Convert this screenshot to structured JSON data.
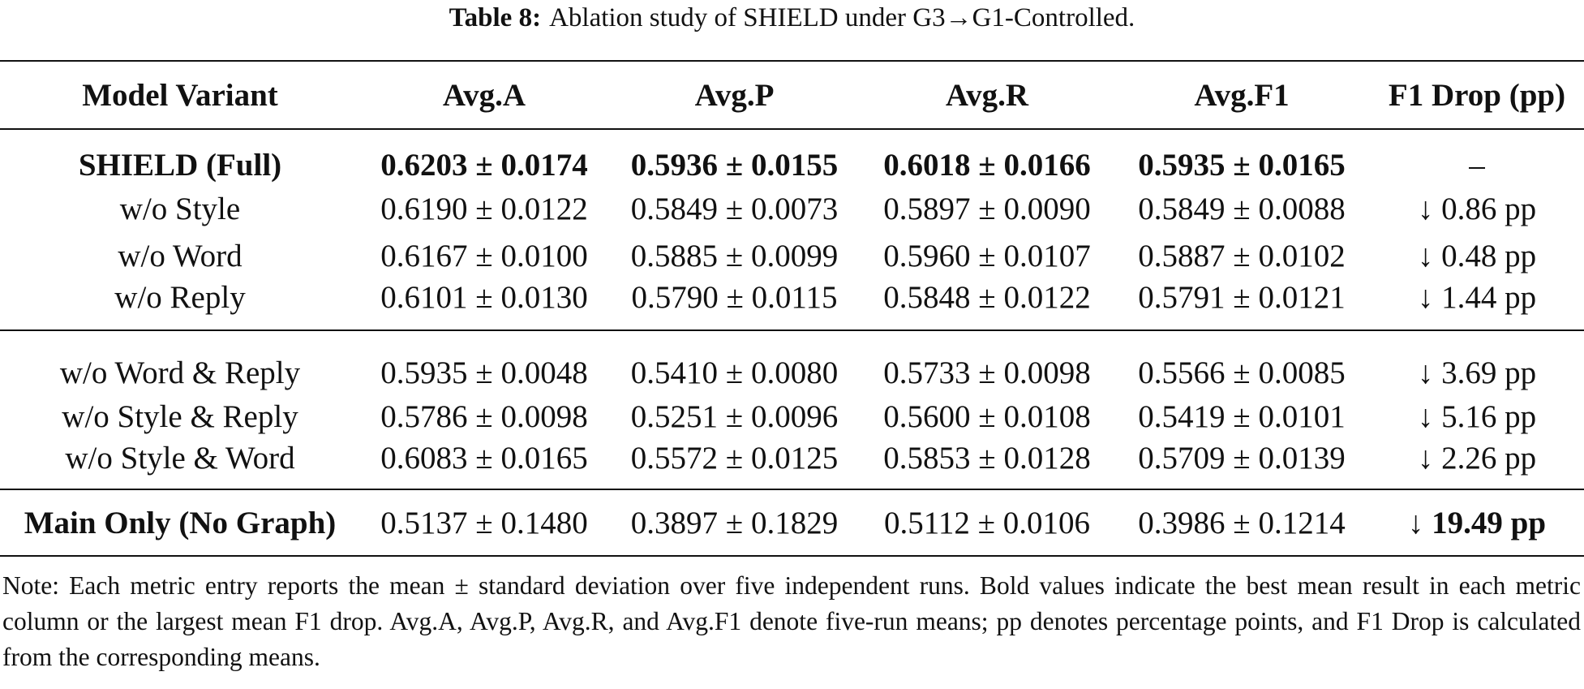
{
  "caption": {
    "label": "Table 8:",
    "text": "Ablation study of SHIELD under G3→G1-Controlled."
  },
  "table": {
    "headers": [
      "Model Variant",
      "Avg.A",
      "Avg.P",
      "Avg.R",
      "Avg.F1",
      "F1 Drop (pp)"
    ],
    "groups": [
      [
        {
          "variant": "SHIELD (Full)",
          "a": "0.6203 ± 0.0174",
          "p": "0.5936 ± 0.0155",
          "r": "0.6018 ± 0.0166",
          "f1": "0.5935 ± 0.0165",
          "drop": "–"
        },
        {
          "variant": "w/o Style",
          "a": "0.6190 ± 0.0122",
          "p": "0.5849 ± 0.0073",
          "r": "0.5897 ± 0.0090",
          "f1": "0.5849 ± 0.0088",
          "drop": "↓ 0.86 pp"
        },
        {
          "variant": "w/o Word",
          "a": "0.6167 ± 0.0100",
          "p": "0.5885 ± 0.0099",
          "r": "0.5960 ± 0.0107",
          "f1": "0.5887 ± 0.0102",
          "drop": "↓ 0.48 pp"
        },
        {
          "variant": "w/o Reply",
          "a": "0.6101 ± 0.0130",
          "p": "0.5790 ± 0.0115",
          "r": "0.5848 ± 0.0122",
          "f1": "0.5791 ± 0.0121",
          "drop": "↓ 1.44 pp"
        }
      ],
      [
        {
          "variant": "w/o Word & Reply",
          "a": "0.5935 ± 0.0048",
          "p": "0.5410 ± 0.0080",
          "r": "0.5733 ± 0.0098",
          "f1": "0.5566 ± 0.0085",
          "drop": "↓ 3.69 pp"
        },
        {
          "variant": "w/o Style & Reply",
          "a": "0.5786 ± 0.0098",
          "p": "0.5251 ± 0.0096",
          "r": "0.5600 ± 0.0108",
          "f1": "0.5419 ± 0.0101",
          "drop": "↓ 5.16 pp"
        },
        {
          "variant": "w/o Style & Word",
          "a": "0.6083 ± 0.0165",
          "p": "0.5572 ± 0.0125",
          "r": "0.5853 ± 0.0128",
          "f1": "0.5709 ± 0.0139",
          "drop": "↓ 2.26 pp"
        }
      ],
      [
        {
          "variant": "Main Only (No Graph)",
          "a": "0.5137 ± 0.1480",
          "p": "0.3897 ± 0.1829",
          "r": "0.5112 ± 0.0106",
          "f1": "0.3986 ± 0.1214",
          "drop_arrow": "↓",
          "drop_value": "19.49 pp"
        }
      ]
    ]
  },
  "note": "Note: Each metric entry reports the mean ± standard deviation over five independent runs. Bold values indicate the best mean result in each metric column or the largest mean F1 drop. Avg.A, Avg.P, Avg.R, and Avg.F1 denote five-run means; pp denotes percentage points, and F1 Drop is calculated from the corresponding means."
}
